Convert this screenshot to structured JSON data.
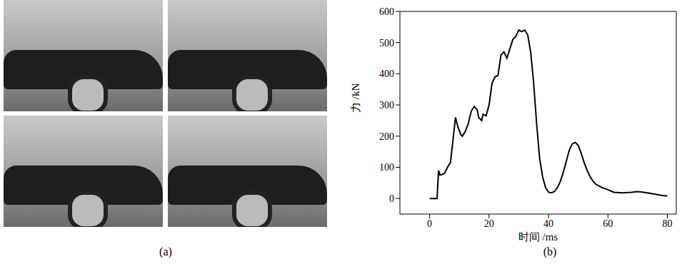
{
  "photos": {
    "caption": "(a)",
    "frames": 4
  },
  "chart_data": {
    "type": "line",
    "title": "(b)",
    "x_label": "时间 /ms",
    "y_label": "力 /kN",
    "x": [
      0,
      2,
      2.5,
      3,
      3.5,
      5,
      6,
      7,
      8,
      8.7,
      9.5,
      10.5,
      11,
      12,
      13,
      14,
      15,
      16,
      16.5,
      17.5,
      18,
      19,
      20,
      21,
      22,
      23,
      24,
      25,
      26,
      27,
      28,
      29,
      30,
      31,
      32,
      33,
      34,
      35,
      36,
      37,
      38,
      39,
      40,
      41,
      42,
      43,
      44,
      45,
      46,
      47,
      48,
      49,
      50,
      51,
      52,
      53,
      54,
      55,
      56,
      57,
      58,
      60,
      62,
      65,
      68,
      70,
      72,
      75,
      78,
      80
    ],
    "values": [
      0,
      0,
      0,
      90,
      75,
      80,
      100,
      115,
      200,
      260,
      230,
      205,
      200,
      215,
      240,
      280,
      295,
      285,
      260,
      250,
      270,
      265,
      300,
      370,
      390,
      395,
      460,
      470,
      450,
      480,
      510,
      520,
      540,
      535,
      540,
      525,
      470,
      370,
      240,
      130,
      70,
      35,
      20,
      18,
      22,
      35,
      55,
      85,
      120,
      155,
      175,
      180,
      170,
      145,
      115,
      90,
      70,
      55,
      45,
      40,
      35,
      28,
      20,
      18,
      20,
      22,
      20,
      15,
      10,
      8
    ],
    "color": "#000000",
    "xlim": [
      -10,
      83
    ],
    "ylim": [
      -50,
      600
    ],
    "xticks": [
      0,
      20,
      40,
      60,
      80
    ],
    "yticks": [
      0,
      100,
      200,
      300,
      400,
      500,
      600
    ],
    "grid": false,
    "legend": "none"
  }
}
